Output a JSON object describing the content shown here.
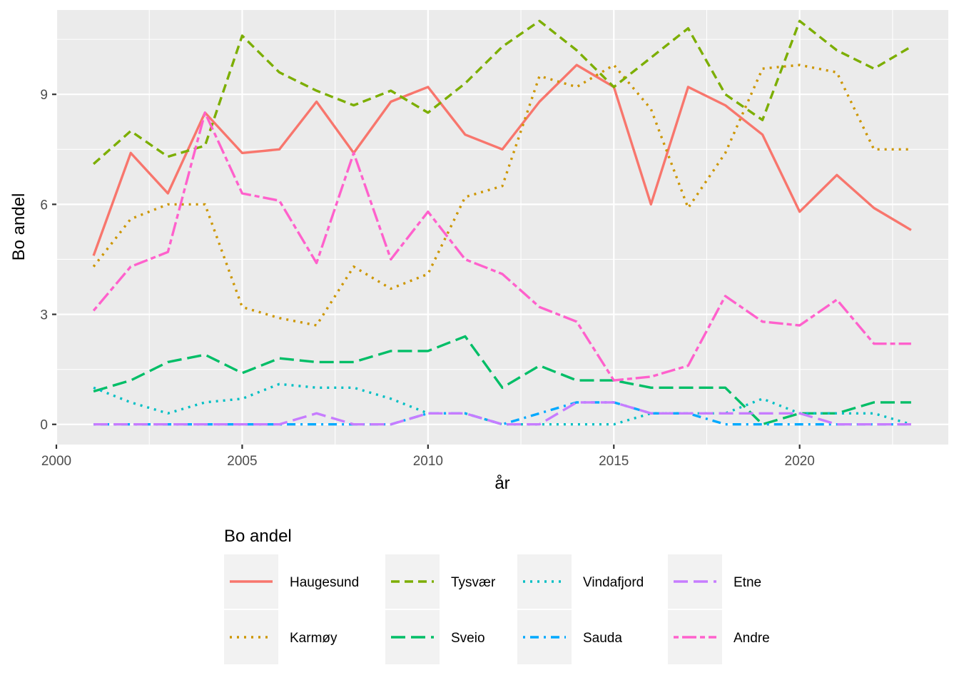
{
  "chart_data": {
    "type": "line",
    "xlabel": "år",
    "ylabel": "Bo andel",
    "xlim": [
      2000,
      2024
    ],
    "ylim": [
      -0.55,
      11.3
    ],
    "x_ticks": [
      2000,
      2005,
      2010,
      2015,
      2020
    ],
    "y_ticks": [
      0,
      3,
      6,
      9
    ],
    "grid": true,
    "legend_title": "Bo andel",
    "legend_position": "bottom",
    "x": [
      2001,
      2002,
      2003,
      2004,
      2005,
      2006,
      2007,
      2008,
      2009,
      2010,
      2011,
      2012,
      2013,
      2014,
      2015,
      2016,
      2017,
      2018,
      2019,
      2020,
      2021,
      2022,
      2023
    ],
    "series": [
      {
        "name": "Haugesund",
        "color": "#F8766D",
        "dash": "solid",
        "values": [
          4.6,
          7.4,
          6.3,
          8.5,
          7.4,
          7.5,
          8.8,
          7.4,
          8.8,
          9.2,
          7.9,
          7.5,
          8.8,
          9.8,
          9.2,
          6.0,
          9.2,
          8.7,
          7.9,
          5.8,
          6.8,
          5.9,
          5.3
        ]
      },
      {
        "name": "Karmøy",
        "color": "#CD9600",
        "dash": "dotted",
        "values": [
          4.3,
          5.6,
          6.0,
          6.0,
          3.2,
          2.9,
          2.7,
          4.3,
          3.7,
          4.1,
          6.2,
          6.5,
          9.5,
          9.2,
          9.8,
          8.6,
          5.9,
          7.4,
          9.7,
          9.8,
          9.6,
          7.5,
          7.5
        ]
      },
      {
        "name": "Tysvær",
        "color": "#7CAE00",
        "dash": "dashed",
        "values": [
          7.1,
          8.0,
          7.3,
          7.6,
          10.6,
          9.6,
          9.1,
          8.7,
          9.1,
          8.5,
          9.3,
          10.3,
          11.0,
          10.2,
          9.2,
          10.0,
          10.8,
          9.0,
          8.3,
          11.0,
          10.2,
          9.7,
          10.3
        ]
      },
      {
        "name": "Sveio",
        "color": "#00BE67",
        "dash": "longdash",
        "values": [
          0.9,
          1.2,
          1.7,
          1.9,
          1.4,
          1.8,
          1.7,
          1.7,
          2.0,
          2.0,
          2.4,
          1.0,
          1.6,
          1.2,
          1.2,
          1.0,
          1.0,
          1.0,
          0.0,
          0.3,
          0.3,
          0.6,
          0.6
        ]
      },
      {
        "name": "Vindafjord",
        "color": "#00BFC4",
        "dash": "dotted",
        "values": [
          1.0,
          0.6,
          0.3,
          0.6,
          0.7,
          1.1,
          1.0,
          1.0,
          0.7,
          0.3,
          0.3,
          0.0,
          0.0,
          0.0,
          0.0,
          0.3,
          0.3,
          0.3,
          0.7,
          0.3,
          0.3,
          0.3,
          0.0
        ]
      },
      {
        "name": "Sauda",
        "color": "#00A9FF",
        "dash": "dotdash",
        "values": [
          0.0,
          0.0,
          0.0,
          0.0,
          0.0,
          0.0,
          0.0,
          0.0,
          0.0,
          0.3,
          0.3,
          0.0,
          0.3,
          0.6,
          0.6,
          0.3,
          0.3,
          0.0,
          0.0,
          0.0,
          0.0,
          0.0,
          0.0
        ]
      },
      {
        "name": "Etne",
        "color": "#C77CFF",
        "dash": "longdash",
        "values": [
          0.0,
          0.0,
          0.0,
          0.0,
          0.0,
          0.0,
          0.3,
          0.0,
          0.0,
          0.3,
          0.3,
          0.0,
          0.0,
          0.6,
          0.6,
          0.3,
          0.3,
          0.3,
          0.3,
          0.3,
          0.0,
          0.0,
          0.0
        ]
      },
      {
        "name": "Andre",
        "color": "#FF61CC",
        "dash": "twodash",
        "values": [
          3.1,
          4.3,
          4.7,
          8.5,
          6.3,
          6.1,
          4.4,
          7.4,
          4.5,
          5.8,
          4.5,
          4.1,
          3.2,
          2.8,
          1.2,
          1.3,
          1.6,
          3.5,
          2.8,
          2.7,
          3.4,
          2.2,
          2.2
        ]
      }
    ]
  },
  "legend_layout": [
    [
      "Haugesund",
      "Tysvær",
      "Vindafjord",
      "Etne"
    ],
    [
      "Karmøy",
      "Sveio",
      "Sauda",
      "Andre"
    ]
  ]
}
